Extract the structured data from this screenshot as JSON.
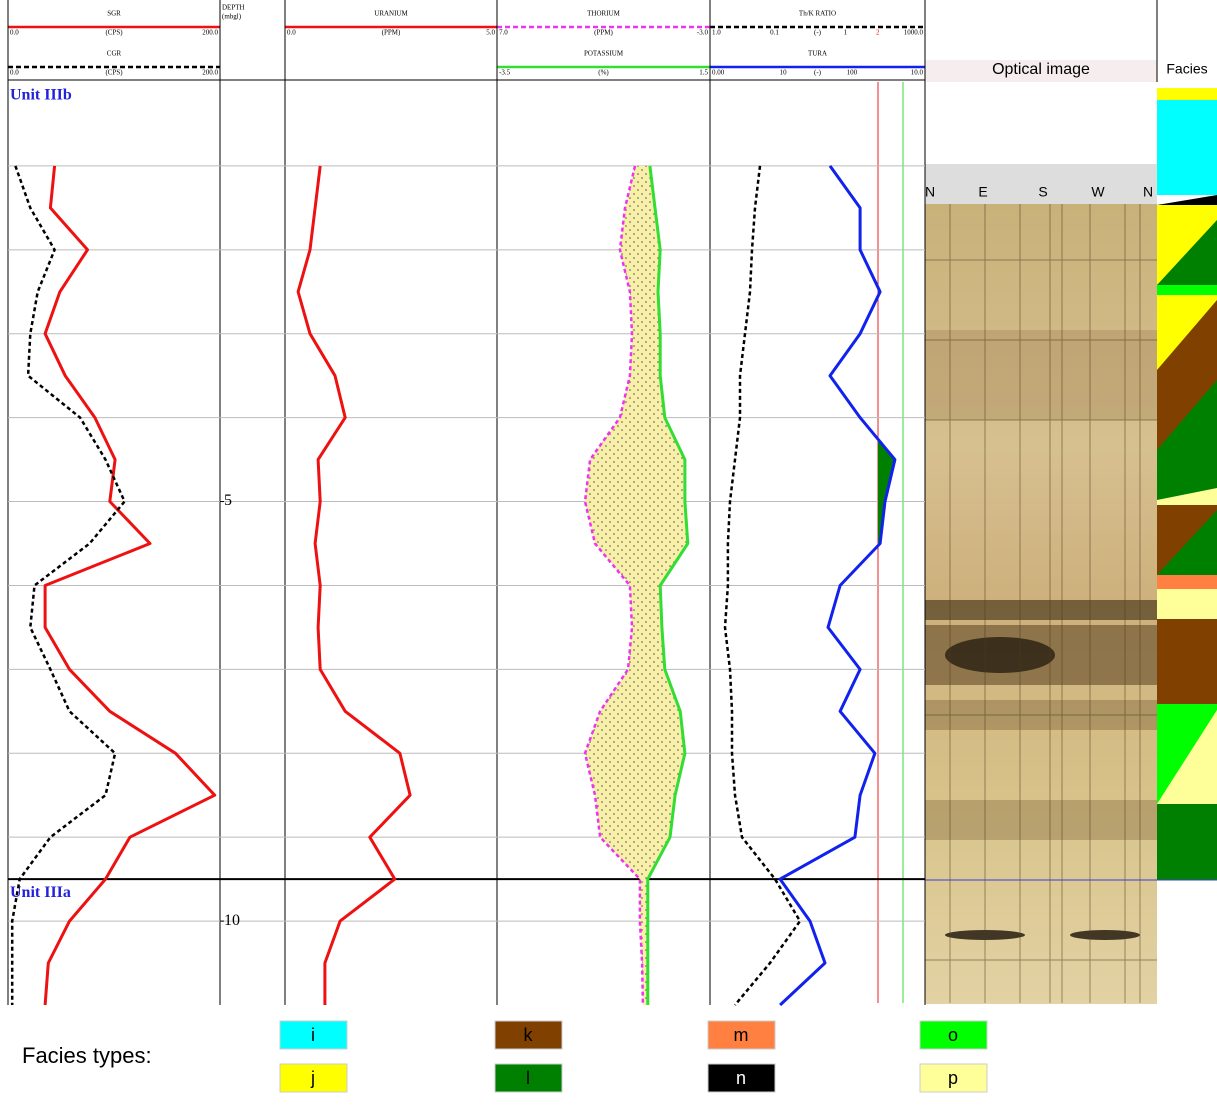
{
  "depth": {
    "values": [
      1,
      1.5,
      2,
      2.5,
      3,
      3.5,
      4,
      4.5,
      5,
      5.5,
      6,
      6.5,
      7,
      7.5,
      8,
      8.5,
      9,
      9.5,
      10,
      10.5,
      11
    ],
    "ylim": [
      0,
      11
    ],
    "grid": [
      1,
      2,
      3,
      4,
      5,
      6,
      7,
      8,
      9,
      10
    ]
  },
  "units": [
    {
      "label": "Unit IIIb"
    },
    {
      "label": "Unit IIIa",
      "top": 9.5
    }
  ],
  "chart_data": [
    {
      "type": "line",
      "series": [
        {
          "name": "SGR",
          "unit": "(CPS)",
          "color": "#ee1111",
          "dash": false,
          "xlim": [
            0,
            200
          ],
          "xticks": [
            {
              "value": 0,
              "label": "0.0"
            },
            {
              "value": 200,
              "label": "200.0"
            }
          ],
          "values": [
            44,
            40,
            75,
            49,
            35,
            54,
            82,
            101,
            96,
            134,
            35,
            35,
            58,
            96,
            158,
            195,
            115,
            92,
            58,
            38,
            35
          ]
        },
        {
          "name": "CGR",
          "unit": "(CPS)",
          "color": "#000000",
          "dash": true,
          "xlim": [
            0,
            200
          ],
          "xticks": [
            {
              "value": 0,
              "label": "0.0"
            },
            {
              "value": 200,
              "label": "200.0"
            }
          ],
          "values": [
            7,
            21,
            44,
            28,
            21,
            19,
            68,
            92,
            110,
            77,
            25,
            21,
            40,
            58,
            101,
            92,
            40,
            11,
            4,
            4,
            4
          ]
        }
      ]
    },
    {
      "type": "depth",
      "title": "DEPTH",
      "unit": "(mbgl)",
      "yticks": [
        5,
        10
      ]
    },
    {
      "type": "line",
      "series": [
        {
          "name": "URANIUM",
          "unit": "(PPM)",
          "color": "#ee1111",
          "dash": false,
          "xlim": [
            0,
            5
          ],
          "xticks": [
            {
              "value": 0,
              "label": "0.0"
            },
            {
              "value": 5,
              "label": "5.0"
            }
          ],
          "values": [
            0.83,
            0.71,
            0.59,
            0.31,
            0.59,
            1.18,
            1.42,
            0.78,
            0.83,
            0.71,
            0.83,
            0.78,
            0.83,
            1.42,
            2.71,
            2.95,
            2.0,
            2.59,
            1.3,
            0.94,
            0.94
          ]
        }
      ]
    },
    {
      "type": "line",
      "fill_between": "#f8f0a8",
      "series": [
        {
          "name": "THORIUM",
          "unit": "(PPM)",
          "color": "#ee33ee",
          "dash": true,
          "xlim": [
            7,
            -3
          ],
          "xticks": [
            {
              "value": 7,
              "label": "7.0"
            },
            {
              "value": -3,
              "label": "-3.0"
            }
          ],
          "values": [
            0.52,
            0.99,
            1.23,
            0.76,
            0.66,
            0.76,
            1.23,
            2.63,
            2.87,
            2.4,
            0.76,
            0.66,
            0.85,
            2.16,
            2.87,
            2.4,
            2.16,
            0.29,
            0.29,
            0.19,
            0.15
          ]
        },
        {
          "name": "POTASSIUM",
          "unit": "(%)",
          "color": "#33dd33",
          "dash": false,
          "xlim": [
            -3.5,
            1.5
          ],
          "xticks": [
            -3.5,
            1.5
          ],
          "values": [
            0.09,
            0.21,
            0.33,
            0.28,
            0.33,
            0.33,
            0.44,
            0.91,
            0.91,
            0.98,
            0.33,
            0.37,
            0.44,
            0.8,
            0.91,
            0.68,
            0.56,
            0.04,
            0.04,
            0.04,
            0.04
          ]
        }
      ]
    },
    {
      "type": "line",
      "series": [
        {
          "name": "Th/K RATIO",
          "unit": "(-)",
          "color": "#000000",
          "dash": true,
          "log": true,
          "xlim": [
            1,
            1000
          ],
          "xticks": [
            {
              "value": 1,
              "label": "1.0"
            },
            {
              "value": 1000,
              "label": "1000.0"
            }
          ],
          "scale_labels": [
            "0.1",
            "1",
            "2"
          ],
          "values": [
            4.99,
            4.25,
            3.85,
            3.61,
            3.08,
            2.62,
            2.62,
            2.23,
            1.9,
            1.78,
            1.78,
            1.62,
            1.9,
            2.03,
            2.03,
            2.23,
            2.8,
            8.07,
            18.0,
            6.87,
            2.23
          ]
        },
        {
          "name": "TURA",
          "unit": "(-)",
          "color": "#1122ee",
          "dash": false,
          "xlim": [
            0,
            10
          ],
          "xticks": [
            {
              "value": 0,
              "label": "0.00"
            },
            {
              "value": 10,
              "label": "10.0"
            }
          ],
          "scale_labels": [
            "10",
            "100"
          ],
          "values": [
            5.58,
            6.98,
            6.98,
            7.91,
            6.98,
            5.58,
            6.98,
            8.6,
            8.14,
            7.91,
            6.05,
            5.49,
            6.98,
            6.05,
            7.67,
            6.98,
            6.74,
            3.26,
            4.65,
            5.35,
            3.26
          ]
        }
      ]
    }
  ],
  "optical": {
    "title": "Optical image",
    "directions": [
      "N",
      "E",
      "S",
      "W",
      "N"
    ]
  },
  "facies": {
    "title": "Facies",
    "legend_title": "Facies types:",
    "types": [
      {
        "label": "i",
        "color": "#00ffff"
      },
      {
        "label": "j",
        "color": "#ffff00"
      },
      {
        "label": "k",
        "color": "#804000"
      },
      {
        "label": "l",
        "color": "#008000"
      },
      {
        "label": "m",
        "color": "#ff8040"
      },
      {
        "label": "n",
        "color": "#000000"
      },
      {
        "label": "o",
        "color": "#00ff00"
      },
      {
        "label": "p",
        "color": "#ffff99"
      }
    ]
  }
}
